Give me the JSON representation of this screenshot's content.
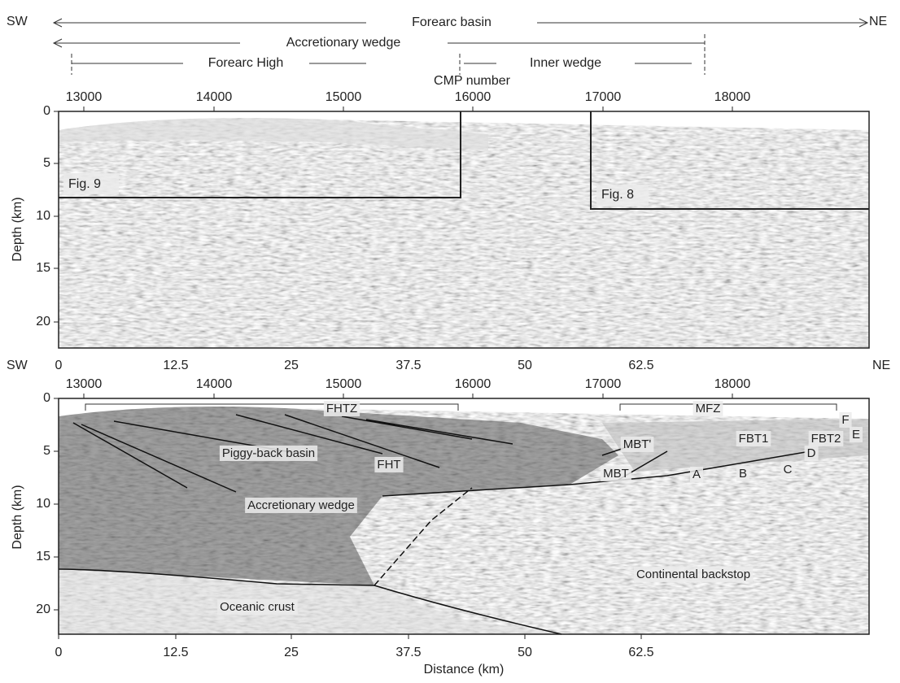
{
  "header": {
    "left": "SW",
    "right": "NE",
    "forearc_basin": "Forearc basin",
    "accretionary_wedge": "Accretionary wedge",
    "forearc_high": "Forearc High",
    "inner_wedge": "Inner wedge"
  },
  "top_panel": {
    "cmp_label": "CMP number",
    "cmp_ticks": [
      "13000",
      "14000",
      "15000",
      "16000",
      "17000",
      "18000"
    ],
    "y_label": "Depth (km)",
    "y_ticks": [
      "0",
      "5",
      "10",
      "15",
      "20"
    ],
    "boxes": [
      "Fig. 9",
      "Fig. 8"
    ]
  },
  "bottom_panel": {
    "left": "SW",
    "right": "NE",
    "distance_ticks": [
      "0",
      "12.5",
      "25",
      "37.5",
      "50",
      "62.5"
    ],
    "cmp_ticks": [
      "13000",
      "14000",
      "15000",
      "16000",
      "17000",
      "18000"
    ],
    "y_label": "Depth (km)",
    "y_ticks": [
      "0",
      "5",
      "10",
      "15",
      "20"
    ],
    "x_label": "Distance (km)",
    "labels": {
      "fhtz": "FHTZ",
      "mfz": "MFZ",
      "mbt_prime": "MBT'",
      "fbt1": "FBT1",
      "fbt2": "FBT2",
      "f": "F",
      "e": "E",
      "d": "D",
      "piggy": "Piggy-back basin",
      "fht": "FHT",
      "mbt": "MBT",
      "a": "A",
      "b": "B",
      "c": "C",
      "wedge": "Accretionary wedge",
      "backstop": "Continental backstop",
      "oceanic": "Oceanic crust"
    }
  }
}
